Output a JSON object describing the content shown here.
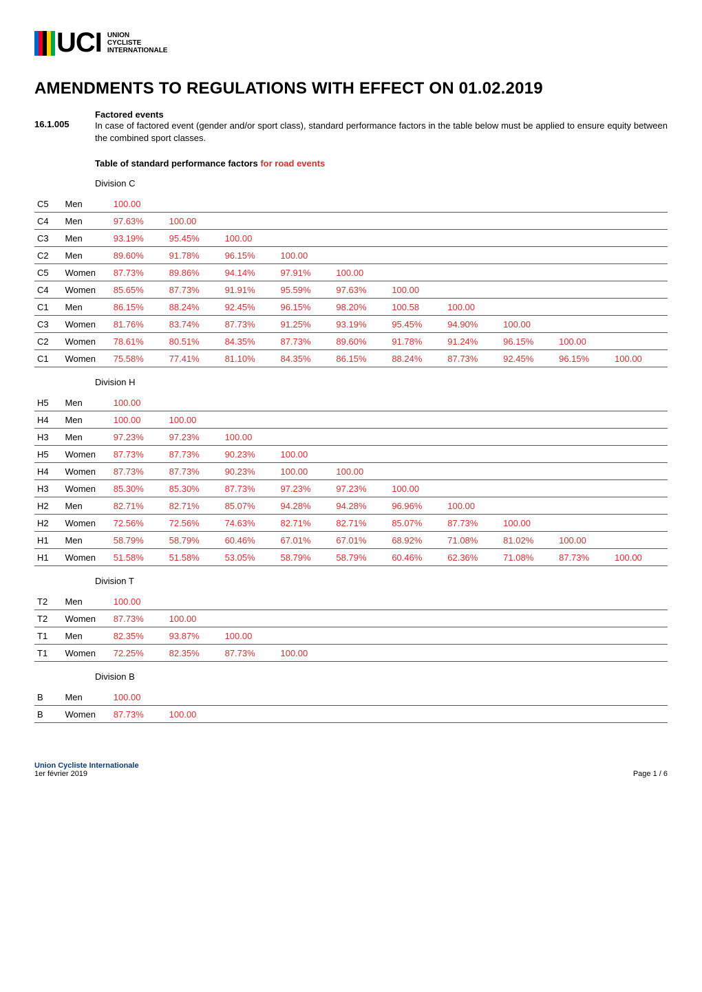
{
  "logo": {
    "stripe_colors": [
      "#0066cc",
      "#e4002b",
      "#000000",
      "#ffd100",
      "#00a651"
    ],
    "text": "UCI",
    "line1": "UNION",
    "line2": "CYCLISTE",
    "line3": "INTERNATIONALE"
  },
  "title": "AMENDMENTS TO REGULATIONS WITH EFFECT ON 01.02.2019",
  "article": {
    "number": "16.1.005",
    "subheading": "Factored events",
    "body": "In case of factored event (gender and/or sport class), standard performance factors in the table below must be applied to ensure equity between the combined sport classes."
  },
  "table_title_black": "Table of standard performance factors",
  "table_title_red": "for road events",
  "divisions": [
    {
      "label": "Division C",
      "rows": [
        {
          "cls": "C5",
          "cat": "Men",
          "vals": [
            "100.00"
          ]
        },
        {
          "cls": "C4",
          "cat": "Men",
          "vals": [
            "97.63%",
            "100.00"
          ]
        },
        {
          "cls": "C3",
          "cat": "Men",
          "vals": [
            "93.19%",
            "95.45%",
            "100.00"
          ]
        },
        {
          "cls": "C2",
          "cat": "Men",
          "vals": [
            "89.60%",
            "91.78%",
            "96.15%",
            "100.00"
          ]
        },
        {
          "cls": "C5",
          "cat": "Women",
          "vals": [
            "87.73%",
            "89.86%",
            "94.14%",
            "97.91%",
            "100.00"
          ]
        },
        {
          "cls": "C4",
          "cat": "Women",
          "vals": [
            "85.65%",
            "87.73%",
            "91.91%",
            "95.59%",
            "97.63%",
            "100.00"
          ]
        },
        {
          "cls": "C1",
          "cat": "Men",
          "vals": [
            "86.15%",
            "88.24%",
            "92.45%",
            "96.15%",
            "98.20%",
            "100.58",
            "100.00"
          ]
        },
        {
          "cls": "C3",
          "cat": "Women",
          "vals": [
            "81.76%",
            "83.74%",
            "87.73%",
            "91.25%",
            "93.19%",
            "95.45%",
            "94.90%",
            "100.00"
          ]
        },
        {
          "cls": "C2",
          "cat": "Women",
          "vals": [
            "78.61%",
            "80.51%",
            "84.35%",
            "87.73%",
            "89.60%",
            "91.78%",
            "91.24%",
            "96.15%",
            "100.00"
          ]
        },
        {
          "cls": "C1",
          "cat": "Women",
          "vals": [
            "75.58%",
            "77.41%",
            "81.10%",
            "84.35%",
            "86.15%",
            "88.24%",
            "87.73%",
            "92.45%",
            "96.15%",
            "100.00"
          ]
        }
      ],
      "cols": 10
    },
    {
      "label": "Division H",
      "rows": [
        {
          "cls": "H5",
          "cat": "Men",
          "vals": [
            "100.00"
          ]
        },
        {
          "cls": "H4",
          "cat": "Men",
          "vals": [
            "100.00",
            "100.00"
          ]
        },
        {
          "cls": "H3",
          "cat": "Men",
          "vals": [
            "97.23%",
            "97.23%",
            "100.00"
          ]
        },
        {
          "cls": "H5",
          "cat": "Women",
          "vals": [
            "87.73%",
            "87.73%",
            "90.23%",
            "100.00"
          ]
        },
        {
          "cls": "H4",
          "cat": "Women",
          "vals": [
            "87.73%",
            "87.73%",
            "90.23%",
            "100.00",
            "100.00"
          ]
        },
        {
          "cls": "H3",
          "cat": "Women",
          "vals": [
            "85.30%",
            "85.30%",
            "87.73%",
            "97.23%",
            "97.23%",
            "100.00"
          ]
        },
        {
          "cls": "H2",
          "cat": "Men",
          "vals": [
            "82.71%",
            "82.71%",
            "85.07%",
            "94.28%",
            "94.28%",
            "96.96%",
            "100.00"
          ]
        },
        {
          "cls": "H2",
          "cat": "Women",
          "vals": [
            "72.56%",
            "72.56%",
            "74.63%",
            "82.71%",
            "82.71%",
            "85.07%",
            "87.73%",
            "100.00"
          ]
        },
        {
          "cls": "H1",
          "cat": "Men",
          "vals": [
            "58.79%",
            "58.79%",
            "60.46%",
            "67.01%",
            "67.01%",
            "68.92%",
            "71.08%",
            "81.02%",
            "100.00"
          ]
        },
        {
          "cls": "H1",
          "cat": "Women",
          "vals": [
            "51.58%",
            "51.58%",
            "53.05%",
            "58.79%",
            "58.79%",
            "60.46%",
            "62.36%",
            "71.08%",
            "87.73%",
            "100.00"
          ]
        }
      ],
      "cols": 10
    },
    {
      "label": "Division T",
      "rows": [
        {
          "cls": "T2",
          "cat": "Men",
          "vals": [
            "100.00"
          ]
        },
        {
          "cls": "T2",
          "cat": "Women",
          "vals": [
            "87.73%",
            "100.00"
          ]
        },
        {
          "cls": "T1",
          "cat": "Men",
          "vals": [
            "82.35%",
            "93.87%",
            "100.00"
          ]
        },
        {
          "cls": "T1",
          "cat": "Women",
          "vals": [
            "72.25%",
            "82.35%",
            "87.73%",
            "100.00"
          ]
        }
      ],
      "cols": 10
    },
    {
      "label": "Division B",
      "rows": [
        {
          "cls": "B",
          "cat": "Men",
          "vals": [
            "100.00"
          ]
        },
        {
          "cls": "B",
          "cat": "Women",
          "vals": [
            "87.73%",
            "100.00"
          ]
        }
      ],
      "cols": 10
    }
  ],
  "footer": {
    "org": "Union Cycliste Internationale",
    "date": "1er février 2019",
    "page": "Page 1 / 6"
  },
  "colors": {
    "red": "#d32f2f",
    "black": "#000000",
    "blue": "#0b3c7a"
  }
}
